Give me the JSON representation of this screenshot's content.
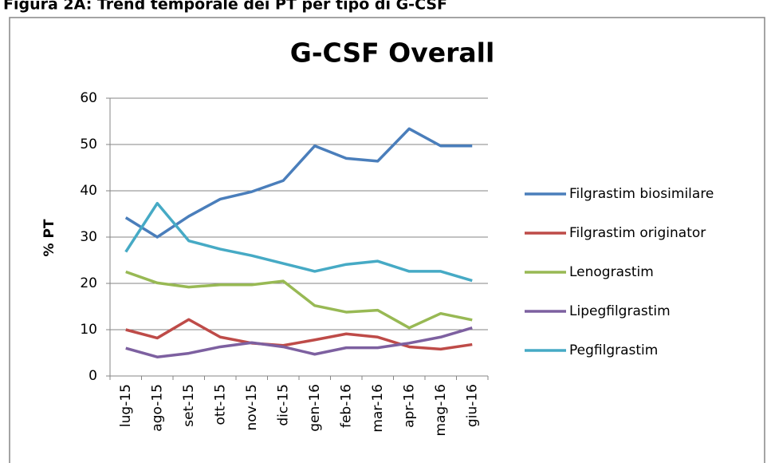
{
  "caption": "Figura 2A: Trend temporale dei PT per tipo di G-CSF",
  "chart_data": {
    "type": "line",
    "title": "G-CSF Overall",
    "y_label": "% PT",
    "categories": [
      "lug-15",
      "ago-15",
      "set-15",
      "ott-15",
      "nov-15",
      "dic-15",
      "gen-16",
      "feb-16",
      "mar-16",
      "apr-16",
      "mag-16",
      "giu-16"
    ],
    "series": [
      {
        "name": "Filgrastim biosimilare",
        "color": "#4a7ebb",
        "values": [
          34.2,
          30,
          34.5,
          38.2,
          39.8,
          42.2,
          49.7,
          47,
          46.4,
          53.4,
          49.7,
          49.7
        ]
      },
      {
        "name": "Filgrastim  originator",
        "color": "#be4b48",
        "values": [
          10,
          8.2,
          12.2,
          8.4,
          7.1,
          6.6,
          7.8,
          9.1,
          8.4,
          6.3,
          5.8,
          6.8
        ]
      },
      {
        "name": "Lenograstim",
        "color": "#98b954",
        "values": [
          22.5,
          20.1,
          19.2,
          19.7,
          19.7,
          20.5,
          15.2,
          13.8,
          14.2,
          10.4,
          13.5,
          12.1
        ]
      },
      {
        "name": "Lipegfilgrastim",
        "color": "#7d60a0",
        "values": [
          6,
          4.1,
          4.9,
          6.3,
          7.2,
          6.3,
          4.7,
          6.1,
          6.1,
          7.1,
          8.4,
          10.4
        ]
      },
      {
        "name": "Pegfilgrastim",
        "color": "#46aac5",
        "values": [
          26.8,
          37.3,
          29.2,
          27.4,
          26,
          24.3,
          22.6,
          24.1,
          24.8,
          22.6,
          22.6,
          20.6
        ]
      }
    ],
    "ylim": [
      0,
      60
    ],
    "yticks": [
      0,
      10,
      20,
      30,
      40,
      50,
      60
    ],
    "grid": true,
    "legend": "right"
  }
}
